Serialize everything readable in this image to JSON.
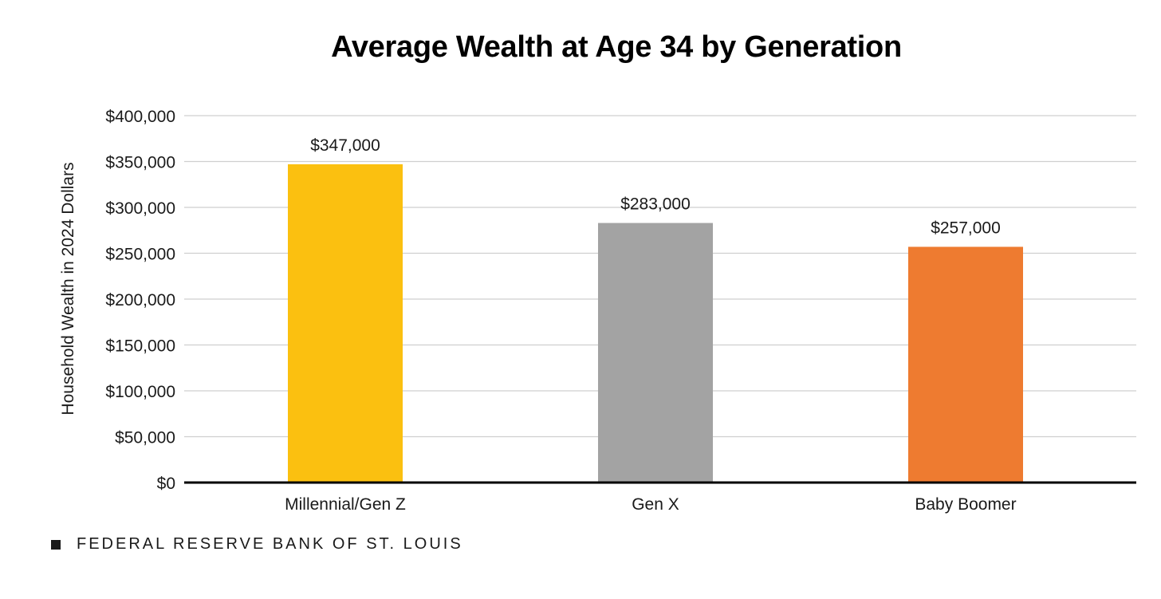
{
  "chart_data": {
    "type": "bar",
    "title": "Average Wealth at Age 34 by Generation",
    "xlabel": "",
    "ylabel": "Household Wealth in 2024 Dollars",
    "categories": [
      "Millennial/Gen Z",
      "Gen X",
      "Baby Boomer"
    ],
    "values": [
      347000,
      283000,
      257000
    ],
    "data_labels": [
      "$347,000",
      "$283,000",
      "$257,000"
    ],
    "bar_colors": [
      "#FBC010",
      "#A3A3A3",
      "#EE7B30"
    ],
    "ylim": [
      0,
      400000
    ],
    "yticks": [
      0,
      50000,
      100000,
      150000,
      200000,
      250000,
      300000,
      350000,
      400000
    ],
    "ytick_labels": [
      "$0",
      "$50,000",
      "$100,000",
      "$150,000",
      "$200,000",
      "$250,000",
      "$300,000",
      "$350,000",
      "$400,000"
    ],
    "grid": true,
    "legend": "none"
  },
  "footer": {
    "source": "FEDERAL RESERVE BANK OF ST. LOUIS"
  }
}
